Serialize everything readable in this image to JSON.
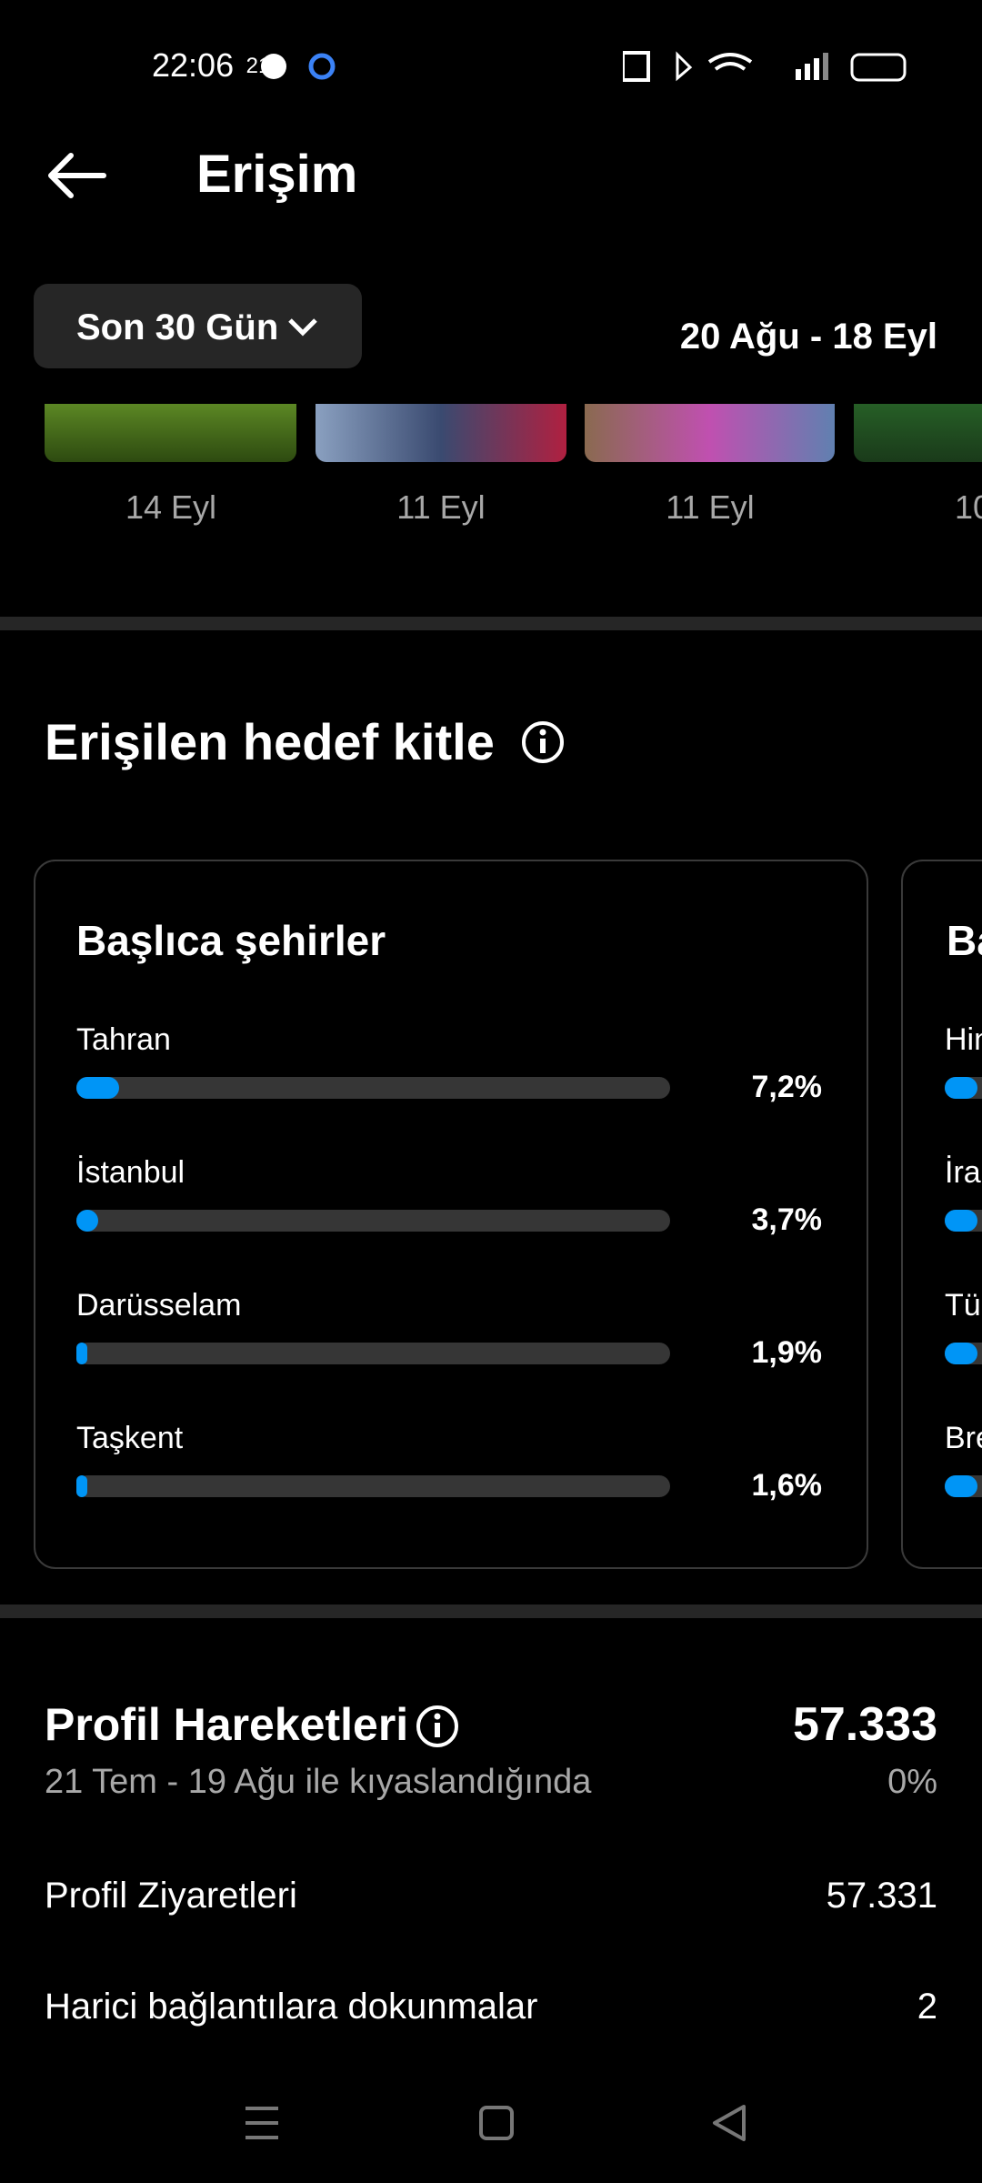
{
  "status_bar": {
    "time": "22:06",
    "battery": "21"
  },
  "header": {
    "title": "Erişim"
  },
  "filter": {
    "period": "Son 30 Gün",
    "date_range": "20 Ağu - 18 Eyl"
  },
  "posts": {
    "dates": [
      "14 Eyl",
      "11 Eyl",
      "11 Eyl",
      "10"
    ]
  },
  "audience": {
    "title": "Erişilen hedef kitle",
    "cities": {
      "title": "Başlıca şehirler",
      "xlim": [
        0,
        100
      ],
      "rows": [
        {
          "name": "Tahran",
          "value": 7.2,
          "value_label": "7,2%"
        },
        {
          "name": "İstanbul",
          "value": 3.7,
          "value_label": "3,7%"
        },
        {
          "name": "Darüsselam",
          "value": 1.9,
          "value_label": "1,9%"
        },
        {
          "name": "Taşkent",
          "value": 1.6,
          "value_label": "1,6%"
        }
      ]
    },
    "second_card": {
      "title": "Ba",
      "rows": [
        "Hin",
        "İra",
        "Tü",
        "Bre"
      ]
    }
  },
  "profile": {
    "title": "Profil Hareketleri",
    "total": "57.333",
    "comparison": "21 Tem - 19 Ağu ile kıyaslandığında",
    "change": "0%",
    "rows": [
      {
        "label": "Profil Ziyaretleri",
        "value": "57.331"
      },
      {
        "label": "Harici bağlantılara dokunmalar",
        "value": "2"
      }
    ]
  }
}
